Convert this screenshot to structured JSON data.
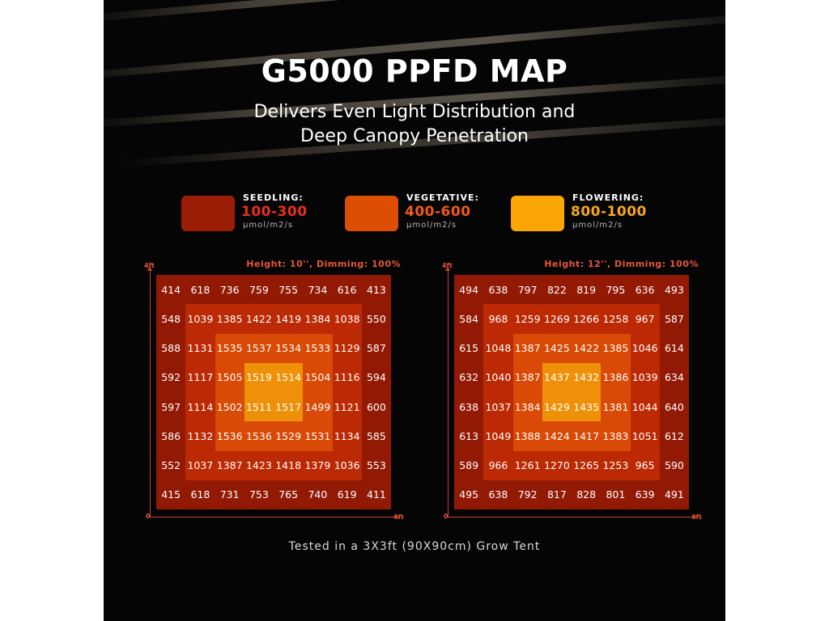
{
  "title": "G5000 PPFD MAP",
  "subtitle_lines": [
    "Delivers Even Light Distribution and",
    "Deep Canopy Penetration"
  ],
  "legend": [
    {
      "name": "SEEDLING:",
      "range": "100-300",
      "unit": "μmol/m2/s",
      "color": "#9b1d06",
      "range_color": "#e8301a"
    },
    {
      "name": "VEGETATIVE:",
      "range": "400-600",
      "unit": "μmol/m2/s",
      "color": "#dd4e05",
      "range_color": "#f05a18"
    },
    {
      "name": "FLOWERING:",
      "range": "800-1000",
      "unit": "μmol/m2/s",
      "color": "#fba605",
      "range_color": "#f7a81a"
    }
  ],
  "colors": {
    "outer": "#921a05",
    "ring2": "#bb2a04",
    "ring3": "#d84a06",
    "center": "#ef9108",
    "axis": "#c0432c",
    "caption": "#e6553a"
  },
  "axis_labels": {
    "top": "4ft",
    "origin": "0",
    "right": "4ft"
  },
  "footer": "Tested in a 3X3ft (90X90cm) Grow Tent",
  "chart_data": [
    {
      "type": "heatmap",
      "title": "Height: 10'', Dimming: 100%",
      "x_range": [
        0,
        4
      ],
      "y_range": [
        0,
        4
      ],
      "grid": [
        [
          414,
          618,
          736,
          759,
          755,
          734,
          616,
          413
        ],
        [
          548,
          1039,
          1385,
          1422,
          1419,
          1384,
          1038,
          550
        ],
        [
          588,
          1131,
          1535,
          1537,
          1534,
          1533,
          1129,
          587
        ],
        [
          592,
          1117,
          1505,
          1519,
          1514,
          1504,
          1116,
          594
        ],
        [
          597,
          1114,
          1502,
          1511,
          1517,
          1499,
          1121,
          600
        ],
        [
          586,
          1132,
          1536,
          1536,
          1529,
          1531,
          1134,
          585
        ],
        [
          552,
          1037,
          1387,
          1423,
          1418,
          1379,
          1036,
          553
        ],
        [
          415,
          618,
          731,
          753,
          765,
          740,
          619,
          411
        ]
      ]
    },
    {
      "type": "heatmap",
      "title": "Height: 12'', Dimming: 100%",
      "x_range": [
        0,
        4
      ],
      "y_range": [
        0,
        4
      ],
      "grid": [
        [
          494,
          638,
          797,
          822,
          819,
          795,
          636,
          493
        ],
        [
          584,
          968,
          1259,
          1269,
          1266,
          1258,
          967,
          587
        ],
        [
          615,
          1048,
          1387,
          1425,
          1422,
          1385,
          1046,
          614
        ],
        [
          632,
          1040,
          1387,
          1437,
          1432,
          1386,
          1039,
          634
        ],
        [
          638,
          1037,
          1384,
          1429,
          1435,
          1381,
          1044,
          640
        ],
        [
          613,
          1049,
          1388,
          1424,
          1417,
          1383,
          1051,
          612
        ],
        [
          589,
          966,
          1261,
          1270,
          1265,
          1253,
          965,
          590
        ],
        [
          495,
          638,
          792,
          817,
          828,
          801,
          639,
          491
        ]
      ]
    }
  ]
}
